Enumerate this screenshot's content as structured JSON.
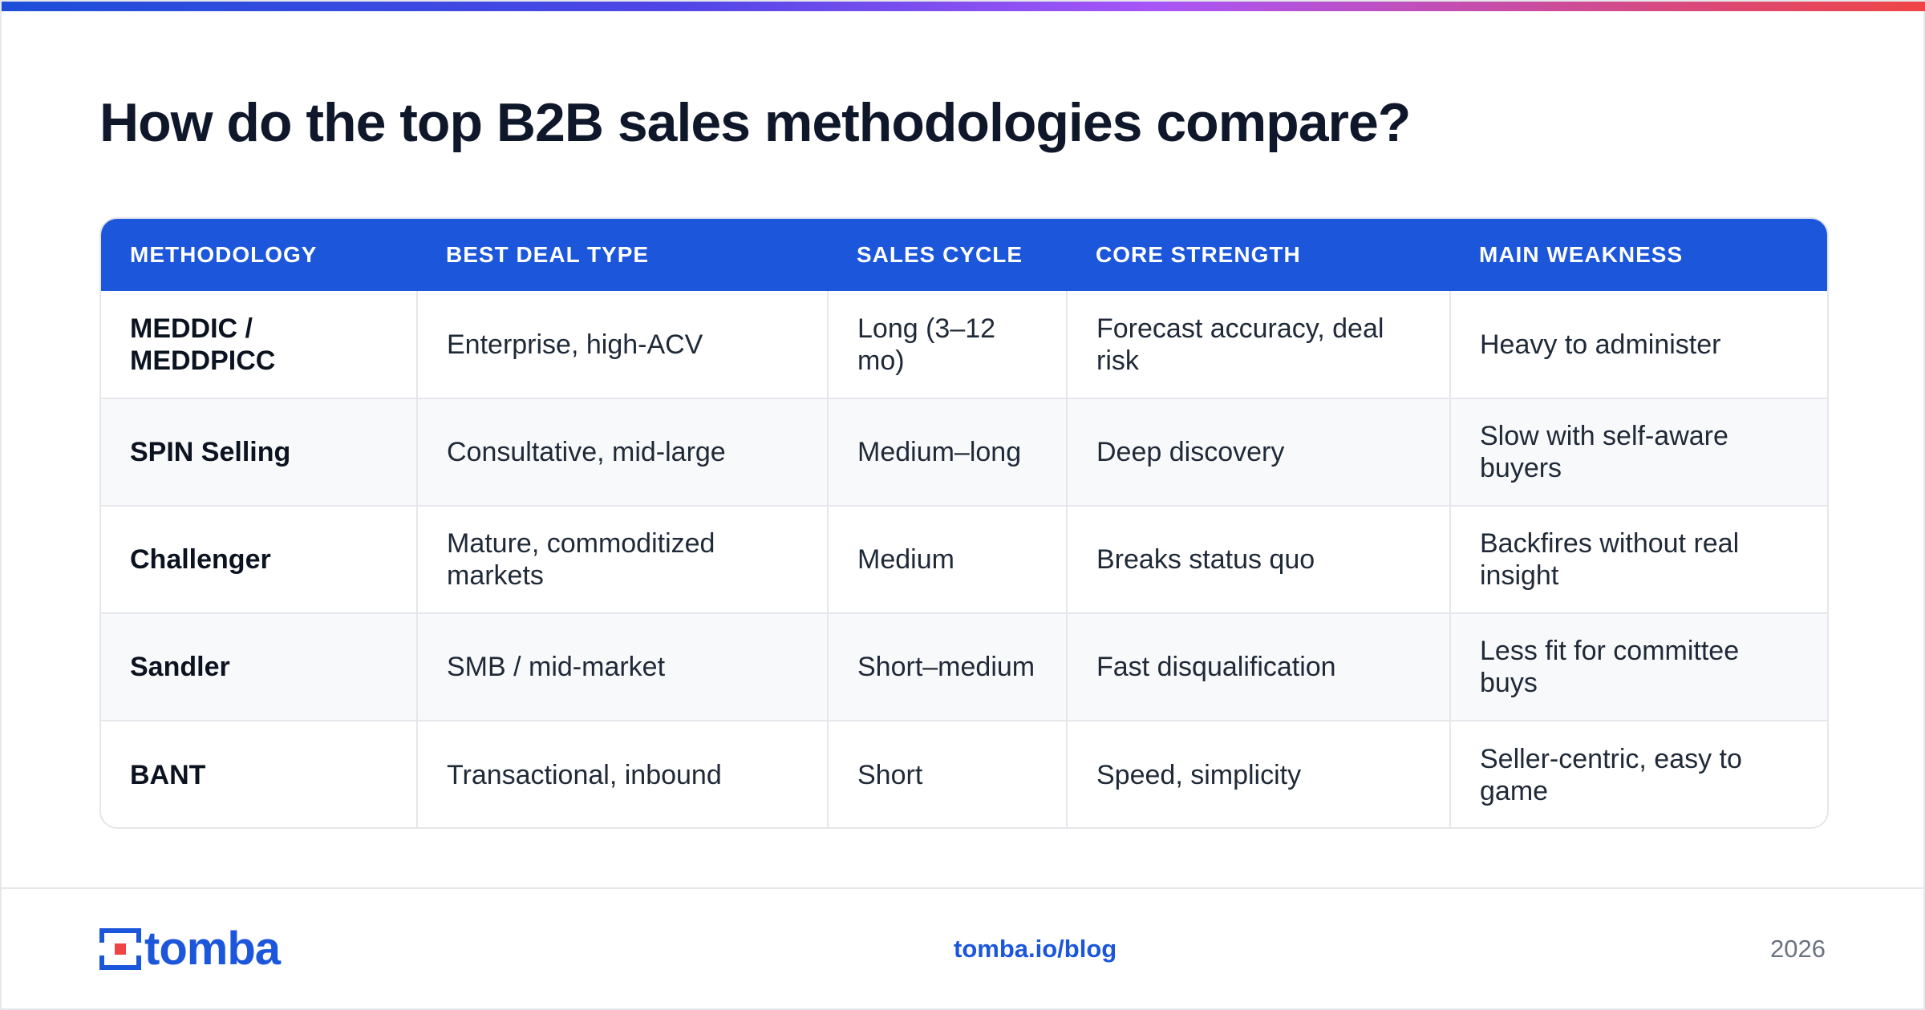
{
  "title": "How do the top B2B sales methodologies compare?",
  "colors": {
    "accent": "#1b56db",
    "header_text": "#ffffff",
    "gradient": [
      "#1d4ed8",
      "#a855f7",
      "#ef4444"
    ]
  },
  "table": {
    "headers": [
      "METHODOLOGY",
      "BEST DEAL TYPE",
      "SALES CYCLE",
      "CORE STRENGTH",
      "MAIN WEAKNESS"
    ],
    "rows": [
      [
        "MEDDIC / MEDDPICC",
        "Enterprise, high-ACV",
        "Long (3–12 mo)",
        "Forecast accuracy, deal risk",
        "Heavy to administer"
      ],
      [
        "SPIN Selling",
        "Consultative, mid-large",
        "Medium–long",
        "Deep discovery",
        "Slow with self-aware buyers"
      ],
      [
        "Challenger",
        "Mature, commoditized markets",
        "Medium",
        "Breaks status quo",
        "Backfires without real insight"
      ],
      [
        "Sandler",
        "SMB / mid-market",
        "Short–medium",
        "Fast disqualification",
        "Less fit for committee buys"
      ],
      [
        "BANT",
        "Transactional, inbound",
        "Short",
        "Speed, simplicity",
        "Seller-centric, easy to game"
      ]
    ]
  },
  "footer": {
    "logo_text": "tomba",
    "logo_icon": "tomba-logo-icon",
    "link": "tomba.io/blog",
    "year": "2026"
  }
}
